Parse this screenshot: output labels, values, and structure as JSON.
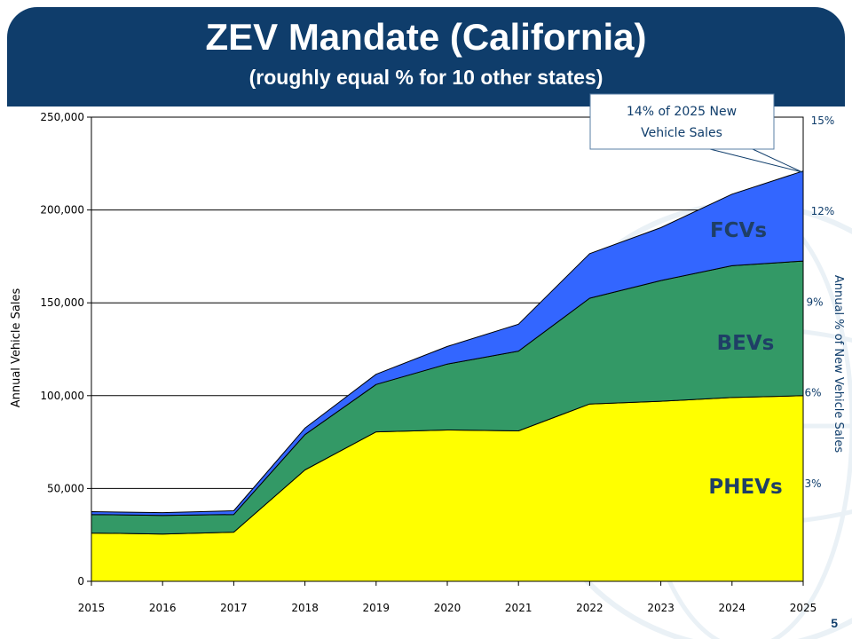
{
  "header": {
    "title": "ZEV Mandate (California)",
    "subtitle": "(roughly equal % for 10 other states)"
  },
  "page_number": "5",
  "colors": {
    "banner": "#0f3d6b",
    "phev": "#ffff00",
    "bev": "#339966",
    "fcv": "#3366ff",
    "label_text": "#1f3f66"
  },
  "chart_data": {
    "type": "area",
    "stacked": true,
    "x": [
      "2015",
      "2016",
      "2017",
      "2018",
      "2019",
      "2020",
      "2021",
      "2022",
      "2023",
      "2024",
      "2025"
    ],
    "series": [
      {
        "name": "PHEVs",
        "color": "#ffff00",
        "values": [
          26000,
          25500,
          26500,
          60000,
          80500,
          81500,
          81000,
          95500,
          97000,
          99000,
          100000
        ]
      },
      {
        "name": "BEVs",
        "color": "#339966",
        "values": [
          10000,
          10000,
          9500,
          19000,
          25500,
          35500,
          43000,
          57000,
          65000,
          71000,
          72500
        ]
      },
      {
        "name": "FCVs",
        "color": "#3366ff",
        "values": [
          1500,
          1500,
          2000,
          3500,
          5500,
          9500,
          14500,
          24000,
          28500,
          38500,
          48500
        ]
      }
    ],
    "ylabel": "Annual Vehicle Sales",
    "ylim": [
      0,
      250000
    ],
    "y_ticks": [
      "0",
      "50,000",
      "100,000",
      "150,000",
      "200,000",
      "250,000"
    ],
    "y_tick_values": [
      0,
      50000,
      100000,
      150000,
      200000,
      250000
    ],
    "y2label": "Annual % of New Vehicle Sales",
    "y2_ticks": [
      {
        "label": "3%",
        "value": 3
      },
      {
        "label": "6%",
        "value": 6
      },
      {
        "label": "9%",
        "value": 9
      },
      {
        "label": "12%",
        "value": 12
      },
      {
        "label": "15%",
        "value": 15
      }
    ],
    "grid": true,
    "annotation": {
      "line1": "14% of 2025 New",
      "line2": "Vehicle Sales",
      "points_to_x": "2025"
    }
  }
}
